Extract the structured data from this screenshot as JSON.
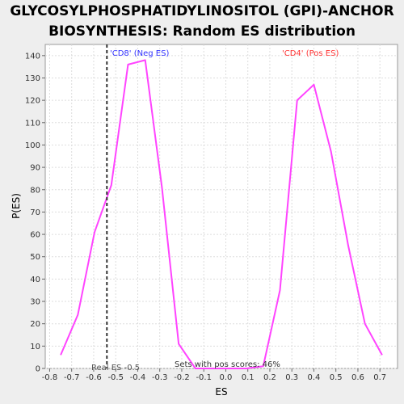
{
  "header": {
    "title_line1": "GLYCOSYLPHOSPHATIDYLINOSITOL (GPI)-ANCHOR",
    "title_line2": "BIOSYNTHESIS: Random ES distribution"
  },
  "chart_data": {
    "type": "line",
    "title": "GLYCOSYLPHOSPHATIDYLINOSITOL (GPI)-ANCHOR BIOSYNTHESIS: Random ES distribution",
    "xlabel": "ES",
    "ylabel": "P(ES)",
    "xlim": [
      -0.82,
      0.78
    ],
    "ylim": [
      0,
      145
    ],
    "x_ticks": [
      -0.8,
      -0.7,
      -0.6,
      -0.5,
      -0.4,
      -0.3,
      -0.2,
      -0.1,
      0.0,
      0.1,
      0.2,
      0.3,
      0.4,
      0.5,
      0.6,
      0.7
    ],
    "x_tick_labels": [
      "-0.8",
      "-0.7",
      "-0.6",
      "-0.5",
      "-0.4",
      "-0.3",
      "-0.2",
      "-0.1",
      "0.0",
      "0.1",
      "0.2",
      "0.3",
      "0.4",
      "0.5",
      "0.6",
      "0.7"
    ],
    "y_ticks": [
      0,
      10,
      20,
      30,
      40,
      50,
      60,
      70,
      80,
      90,
      100,
      110,
      120,
      130,
      140
    ],
    "grid": true,
    "series": [
      {
        "color": "#ff44ff",
        "x": [
          -0.75,
          -0.672,
          -0.596,
          -0.52,
          -0.444,
          -0.366,
          -0.29,
          -0.214,
          -0.138,
          -0.06,
          0.016,
          0.094,
          0.17,
          0.246,
          0.324,
          0.4,
          0.478,
          0.556,
          0.632,
          0.71
        ],
        "y": [
          6,
          24,
          61,
          82,
          136,
          138,
          81,
          11,
          0,
          0,
          0,
          0,
          1,
          35,
          120,
          127,
          97,
          55,
          20,
          6
        ]
      }
    ],
    "real_es": -0.54,
    "annotations": {
      "neg_label": "'CD8' (Neg ES)",
      "pos_label": "'CD4' (Pos ES)",
      "real_es_label": "Real ES -0.5",
      "pos_scores_label": "Sets with pos scores: 46%"
    },
    "colors": {
      "line": "#ff44ff",
      "neg_label": "#3333ff",
      "pos_label": "#ff3333",
      "real_es_line": "#333333"
    }
  }
}
